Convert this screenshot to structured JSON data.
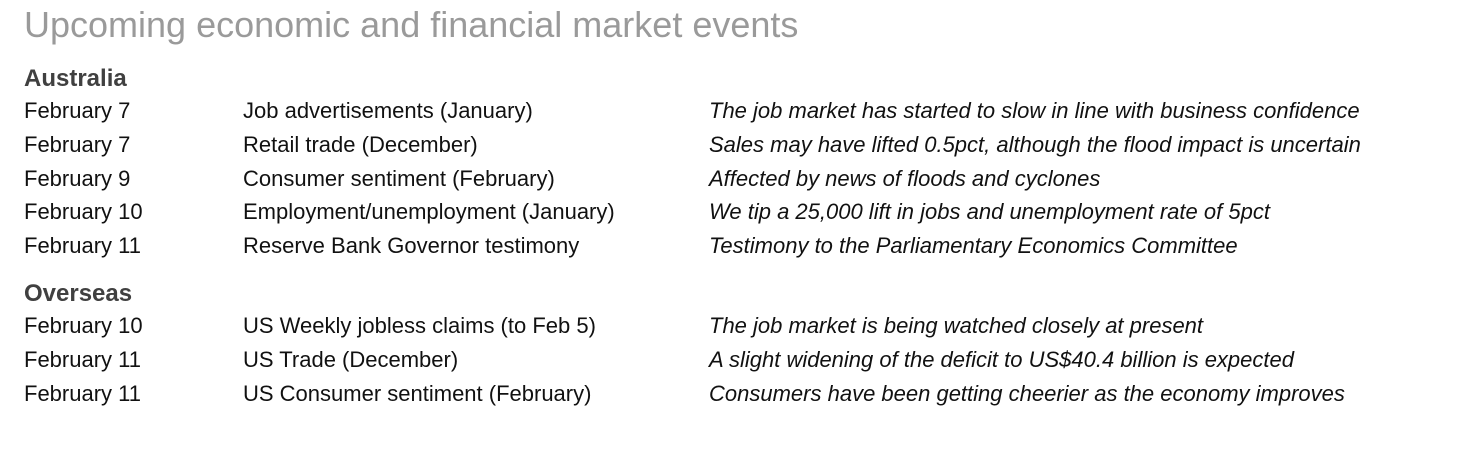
{
  "title": "Upcoming economic and financial market events",
  "sections": [
    {
      "heading": "Australia",
      "rows": [
        {
          "date": "February 7",
          "event": "Job advertisements (January)",
          "comment": "The job market has started to slow in line with business confidence"
        },
        {
          "date": "February 7",
          "event": "Retail trade (December)",
          "comment": "Sales may have lifted 0.5pct, although the flood impact is uncertain"
        },
        {
          "date": "February 9",
          "event": "Consumer sentiment (February)",
          "comment": "Affected by news of floods and cyclones"
        },
        {
          "date": "February 10",
          "event": "Employment/unemployment (January)",
          "comment": "We tip a 25,000 lift in jobs and unemployment rate of 5pct"
        },
        {
          "date": "February 11",
          "event": "Reserve Bank Governor testimony",
          "comment": "Testimony to the Parliamentary Economics Committee"
        }
      ]
    },
    {
      "heading": "Overseas",
      "rows": [
        {
          "date": "February 10",
          "event": "US Weekly jobless claims (to Feb 5)",
          "comment": "The job market is being watched closely at present"
        },
        {
          "date": "February 11",
          "event": "US Trade (December)",
          "comment": "A slight widening of the deficit to US$40.4 billion is expected"
        },
        {
          "date": "February 11",
          "event": "US Consumer sentiment (February)",
          "comment": "Consumers have been getting cheerier as the economy improves"
        }
      ]
    }
  ]
}
